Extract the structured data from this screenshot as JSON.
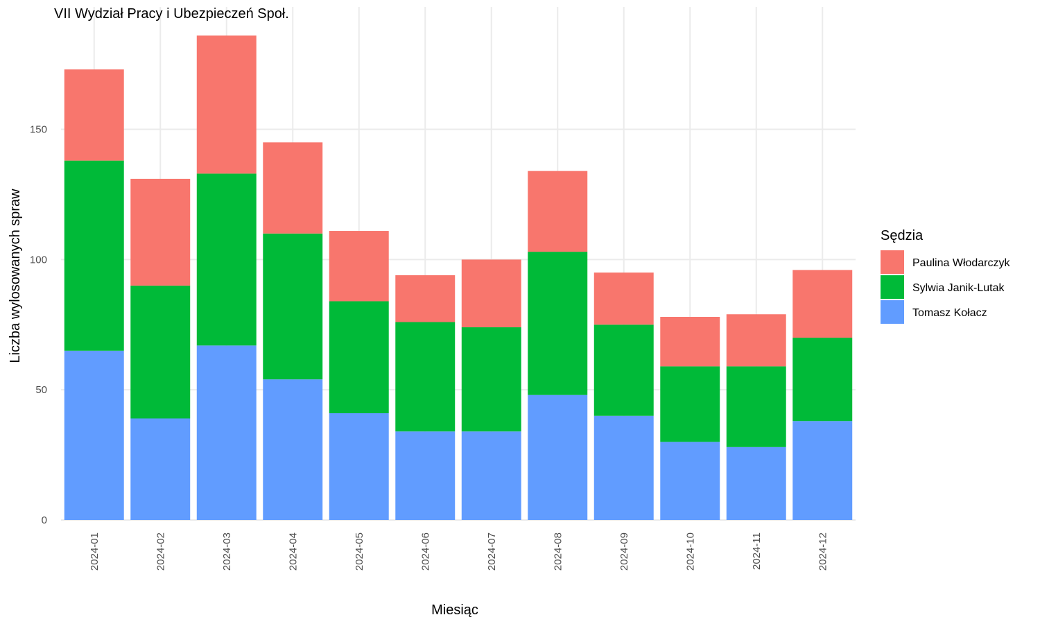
{
  "chart_data": {
    "type": "bar",
    "stacked": true,
    "title": "VII Wydział Pracy i Ubezpieczeń Społ.",
    "xlabel": "Miesiąc",
    "ylabel": "Liczba wylosowanych spraw",
    "ylim": [
      0,
      197
    ],
    "yticks": [
      0,
      50,
      100,
      150
    ],
    "grid": true,
    "legend": {
      "title": "Sędzia",
      "placement": "right"
    },
    "categories": [
      "2024-01",
      "2024-02",
      "2024-03",
      "2024-04",
      "2024-05",
      "2024-06",
      "2024-07",
      "2024-08",
      "2024-09",
      "2024-10",
      "2024-11",
      "2024-12"
    ],
    "series": [
      {
        "name": "Tomasz Kołacz",
        "color": "#619CFF",
        "values": [
          65,
          39,
          67,
          54,
          41,
          34,
          34,
          48,
          40,
          30,
          28,
          38
        ]
      },
      {
        "name": "Sylwia Janik-Lutak",
        "color": "#00BA38",
        "values": [
          73,
          51,
          66,
          56,
          43,
          42,
          40,
          55,
          35,
          29,
          31,
          32
        ]
      },
      {
        "name": "Paulina Włodarczyk",
        "color": "#F8766D",
        "values": [
          35,
          41,
          53,
          35,
          27,
          18,
          26,
          31,
          20,
          19,
          20,
          26
        ]
      }
    ],
    "legend_order": [
      "Paulina Włodarczyk",
      "Sylwia Janik-Lutak",
      "Tomasz Kołacz"
    ]
  }
}
